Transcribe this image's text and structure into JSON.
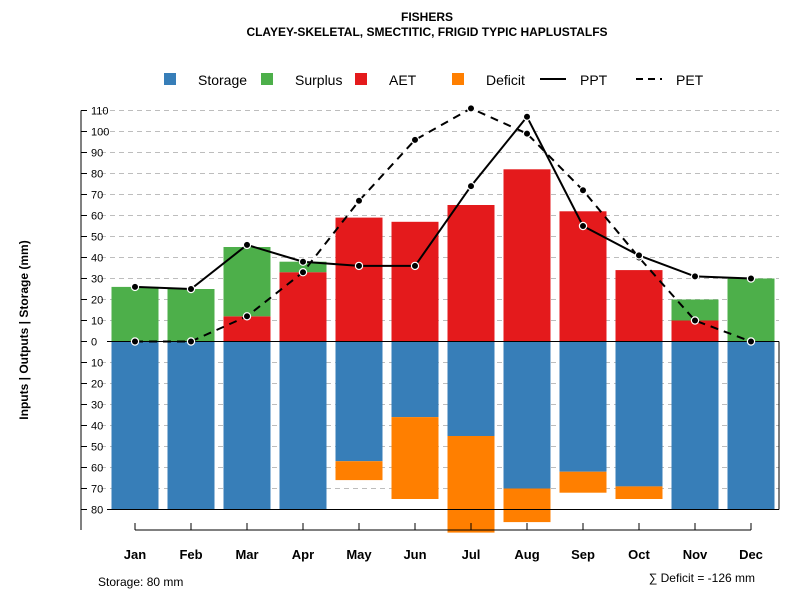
{
  "chart_data": {
    "type": "bar",
    "title": "FISHERS",
    "subtitle": "CLAYEY-SKELETAL, SMECTITIC, FRIGID TYPIC HAPLUSTALFS",
    "ylabel": "Inputs | Outputs | Storage    (mm)",
    "categories": [
      "Jan",
      "Feb",
      "Mar",
      "Apr",
      "May",
      "Jun",
      "Jul",
      "Aug",
      "Sep",
      "Oct",
      "Nov",
      "Dec"
    ],
    "ylim": [
      -92,
      112
    ],
    "yticks_above": [
      "0",
      "10",
      "20",
      "30",
      "40",
      "50",
      "60",
      "70",
      "80",
      "90",
      "100",
      "110"
    ],
    "yticks_below": [
      "10",
      "20",
      "30",
      "40",
      "50",
      "60",
      "70",
      "80"
    ],
    "legend": {
      "placement": "top",
      "items": [
        {
          "label": "Storage",
          "kind": "box",
          "color": "#377EB8"
        },
        {
          "label": "Surplus",
          "kind": "box",
          "color": "#4DAF4A"
        },
        {
          "label": "AET",
          "kind": "box",
          "color": "#E41A1C"
        },
        {
          "label": "Deficit",
          "kind": "box",
          "color": "#FF7F00"
        },
        {
          "label": "PPT",
          "kind": "line",
          "dash": "solid",
          "color": "#000000"
        },
        {
          "label": "PET",
          "kind": "line",
          "dash": "dashed",
          "color": "#000000"
        }
      ]
    },
    "series": [
      {
        "name": "AET",
        "color": "#E41A1C",
        "values": [
          0,
          0,
          12,
          33,
          59,
          57,
          65,
          82,
          62,
          34,
          10,
          0
        ]
      },
      {
        "name": "Surplus",
        "color": "#4DAF4A",
        "values": [
          26,
          25,
          33,
          5,
          0,
          0,
          0,
          0,
          0,
          0,
          10,
          30
        ]
      },
      {
        "name": "Storage",
        "color": "#377EB8",
        "values": [
          80,
          80,
          80,
          80,
          57,
          36,
          45,
          70,
          62,
          69,
          80,
          80
        ]
      },
      {
        "name": "Deficit",
        "color": "#FF7F00",
        "values": [
          0,
          0,
          0,
          0,
          9,
          39,
          46,
          16,
          10,
          6,
          0,
          0
        ]
      },
      {
        "name": "PPT",
        "color": "#000000",
        "values": [
          26,
          25,
          46,
          38,
          36,
          36,
          74,
          107,
          55,
          41,
          31,
          30
        ]
      },
      {
        "name": "PET",
        "color": "#000000",
        "values": [
          0,
          0,
          12,
          33,
          67,
          96,
          111,
          99,
          72,
          40,
          10,
          0
        ]
      }
    ],
    "annotations": {
      "storage": "Storage: 80 mm",
      "deficit": "∑ Deficit = -126 mm"
    }
  }
}
